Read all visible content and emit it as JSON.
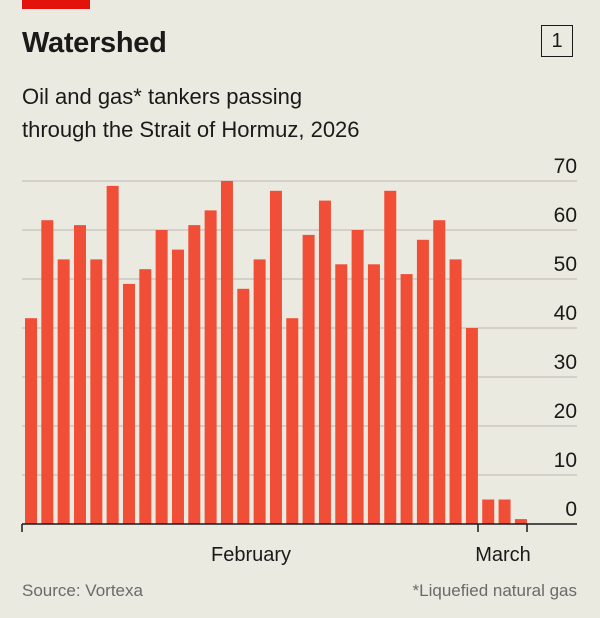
{
  "header": {
    "title": "Watershed",
    "badge": "1",
    "subtitle_line1": "Oil and gas* tankers passing",
    "subtitle_line2": "through the Strait of Hormuz, 2026"
  },
  "footer": {
    "source": "Source: Vortexa",
    "note": "*Liquefied natural gas"
  },
  "colors": {
    "bar": "#f04e37",
    "accent": "#e3120b",
    "background": "#ebeae0"
  },
  "chart_data": {
    "type": "bar",
    "title": "Oil and gas* tankers passing through the Strait of Hormuz, 2026",
    "values": [
      42,
      62,
      54,
      61,
      54,
      69,
      49,
      52,
      60,
      56,
      61,
      64,
      70,
      48,
      54,
      68,
      42,
      59,
      66,
      53,
      60,
      53,
      68,
      51,
      58,
      62,
      54,
      40,
      5,
      5,
      1
    ],
    "x_tick_labels": [
      "February",
      "March"
    ],
    "y_ticks": [
      0,
      10,
      20,
      30,
      40,
      50,
      60,
      70
    ],
    "ylim": [
      0,
      70
    ],
    "y_axis_side": "right",
    "grid": true
  }
}
